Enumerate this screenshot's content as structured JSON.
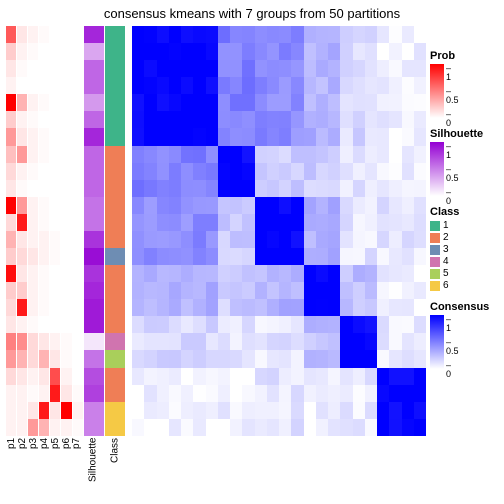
{
  "title": "consensus kmeans with 7 groups from 50 partitions",
  "n_samples": 24,
  "annotation_columns": [
    {
      "name": "p1",
      "width": 10,
      "type": "prob"
    },
    {
      "name": "p2",
      "width": 10,
      "type": "prob"
    },
    {
      "name": "p3",
      "width": 10,
      "type": "prob"
    },
    {
      "name": "p4",
      "width": 10,
      "type": "prob"
    },
    {
      "name": "p5",
      "width": 10,
      "type": "prob"
    },
    {
      "name": "p6",
      "width": 10,
      "type": "prob"
    },
    {
      "name": "p7",
      "width": 10,
      "type": "prob"
    },
    {
      "name": "Silhouette",
      "width": 20,
      "type": "sil"
    },
    {
      "name": "Class",
      "width": 20,
      "type": "class"
    }
  ],
  "prob_values": {
    "p1": [
      0.65,
      0.2,
      0.1,
      0.05,
      1.0,
      0.2,
      0.4,
      0.25,
      0.15,
      0.1,
      1.0,
      0.15,
      0.3,
      0.2,
      0.95,
      0.2,
      0.15,
      0.1,
      0.5,
      0.4,
      0.15,
      0.05,
      0.05,
      0.05
    ],
    "p2": [
      0.1,
      0.05,
      0.02,
      0.0,
      0.3,
      0.05,
      0.1,
      0.4,
      0.05,
      0.02,
      0.4,
      0.9,
      0.1,
      0.15,
      0.1,
      0.2,
      0.9,
      0.05,
      0.45,
      0.3,
      0.1,
      0.05,
      0.05,
      0.05
    ],
    "p3": [
      0.05,
      0.02,
      0.0,
      0.0,
      0.05,
      0.02,
      0.05,
      0.05,
      0.02,
      0.0,
      0.05,
      0.05,
      0.05,
      0.1,
      0.05,
      0.05,
      0.05,
      0.02,
      0.15,
      0.15,
      0.05,
      0.02,
      0.1,
      0.4
    ],
    "p4": [
      0.02,
      0.0,
      0.0,
      0.0,
      0.02,
      0.0,
      0.02,
      0.02,
      0.0,
      0.0,
      0.02,
      0.02,
      0.05,
      0.05,
      0.02,
      0.02,
      0.02,
      0.0,
      0.1,
      0.3,
      0.1,
      0.05,
      0.9,
      0.3
    ],
    "p5": [
      0.0,
      0.0,
      0.0,
      0.0,
      0.0,
      0.0,
      0.0,
      0.0,
      0.0,
      0.0,
      0.0,
      0.0,
      0.02,
      0.02,
      0.0,
      0.0,
      0.0,
      0.0,
      0.05,
      0.1,
      0.7,
      0.9,
      0.1,
      0.05
    ],
    "p6": [
      0.0,
      0.0,
      0.0,
      0.0,
      0.0,
      0.0,
      0.0,
      0.0,
      0.0,
      0.0,
      0.0,
      0.0,
      0.0,
      0.0,
      0.0,
      0.0,
      0.0,
      0.0,
      0.02,
      0.02,
      0.05,
      0.1,
      1.0,
      0.05
    ],
    "p7": [
      0.0,
      0.0,
      0.0,
      0.0,
      0.0,
      0.0,
      0.0,
      0.0,
      0.0,
      0.0,
      0.0,
      0.0,
      0.0,
      0.0,
      0.0,
      0.0,
      0.0,
      0.0,
      0.0,
      0.0,
      0.0,
      0.02,
      0.05,
      0.02
    ]
  },
  "silhouette_values": [
    0.85,
    0.35,
    0.6,
    0.6,
    0.4,
    0.6,
    0.85,
    0.6,
    0.6,
    0.6,
    0.55,
    0.55,
    0.8,
    0.95,
    0.8,
    0.85,
    0.9,
    0.9,
    0.1,
    0.55,
    0.7,
    0.75,
    0.5,
    0.5
  ],
  "class_values": [
    1,
    1,
    1,
    1,
    1,
    1,
    1,
    2,
    2,
    2,
    2,
    2,
    2,
    3,
    2,
    2,
    2,
    2,
    4,
    5,
    2,
    2,
    6,
    6
  ],
  "class_colors": {
    "1": "#3eb489",
    "2": "#ef7e56",
    "3": "#6e8db3",
    "4": "#d074af",
    "5": "#a9cf5b",
    "6": "#f5c945"
  },
  "prob_scale": {
    "low": "#ffffff",
    "high": "#ff0000"
  },
  "sil_scale": {
    "low": "#ffffff",
    "high": "#9400d3"
  },
  "consensus_scale": {
    "low": "#ffffff",
    "high": "#0000ff"
  },
  "block_boundaries": [
    0,
    7,
    10,
    14,
    17,
    20,
    24
  ],
  "block_intensities": [
    [
      1.0,
      0.5,
      0.45,
      0.3,
      0.15,
      0.05
    ],
    [
      0.5,
      1.0,
      0.2,
      0.2,
      0.1,
      0.05
    ],
    [
      0.45,
      0.2,
      1.0,
      0.3,
      0.1,
      0.1
    ],
    [
      0.3,
      0.2,
      0.3,
      1.0,
      0.25,
      0.05
    ],
    [
      0.15,
      0.1,
      0.1,
      0.25,
      1.0,
      0.08
    ],
    [
      0.05,
      0.05,
      0.1,
      0.05,
      0.08,
      1.0
    ]
  ],
  "off_diag_noise": 0.15,
  "legends": {
    "prob": {
      "title": "Prob",
      "ticks": [
        {
          "v": 1,
          "pos": 0
        },
        {
          "v": 0.5,
          "pos": 0.5
        },
        {
          "v": 0,
          "pos": 1
        }
      ]
    },
    "sil": {
      "title": "Silhouette",
      "ticks": [
        {
          "v": 1,
          "pos": 0
        },
        {
          "v": 0.5,
          "pos": 0.5
        },
        {
          "v": 0,
          "pos": 1
        }
      ]
    },
    "class": {
      "title": "Class"
    },
    "consensus": {
      "title": "Consensus",
      "ticks": [
        {
          "v": 1,
          "pos": 0
        },
        {
          "v": 0.5,
          "pos": 0.5
        },
        {
          "v": 0,
          "pos": 1
        }
      ]
    }
  }
}
